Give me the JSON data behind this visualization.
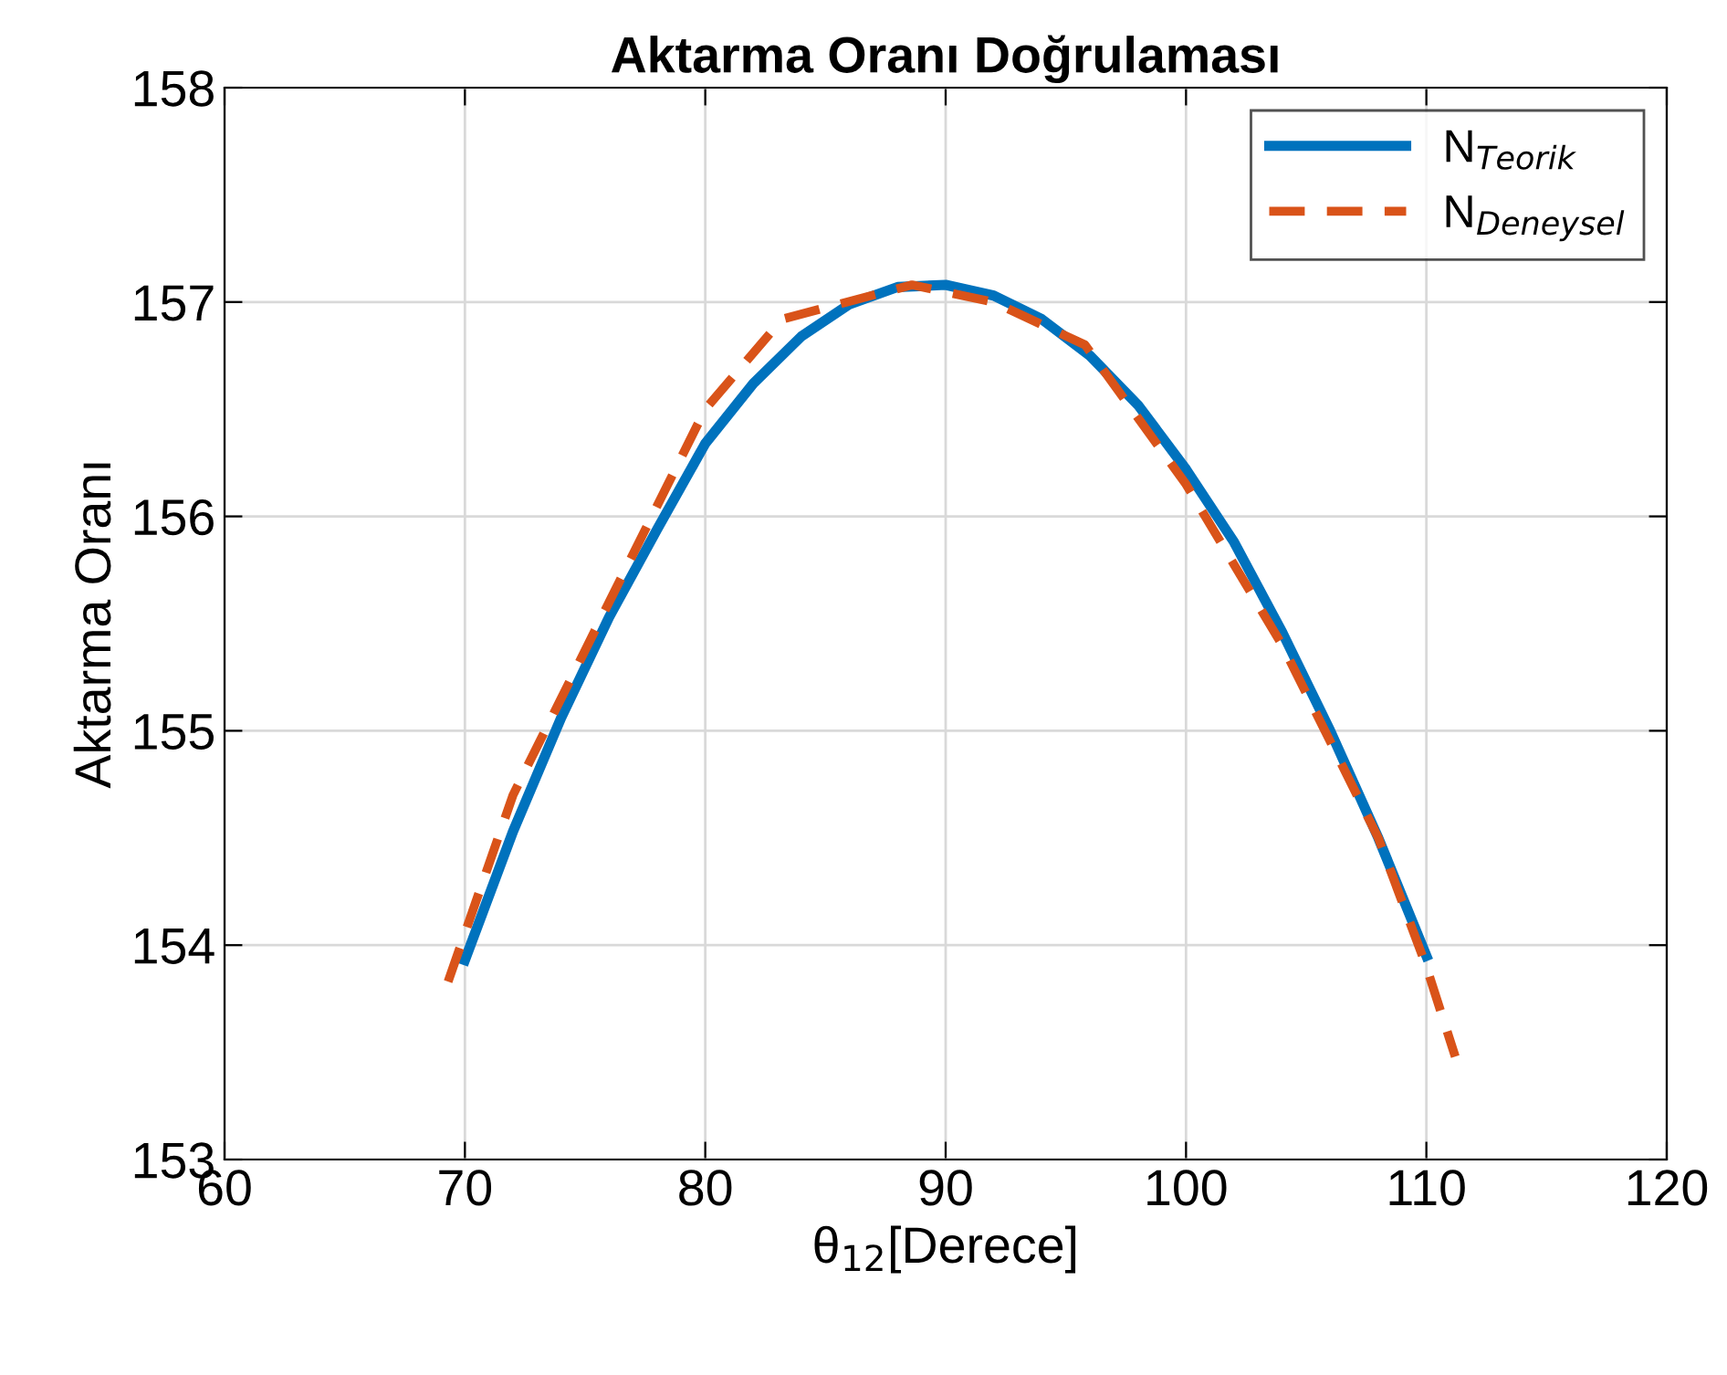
{
  "chart_data": {
    "type": "line",
    "title": "Aktarma Oranı Doğrulaması",
    "xlabel": "θ$_{12}$[Derece]",
    "ylabel": "Aktarma Oranı",
    "xlim": [
      60,
      120
    ],
    "xticks": [
      60,
      70,
      80,
      90,
      100,
      110,
      120
    ],
    "ylim": [
      153,
      158
    ],
    "yticks": [
      153,
      154,
      155,
      156,
      157,
      158
    ],
    "grid": true,
    "legend": "top right",
    "series": [
      {
        "name": "N$_{Teorik}$",
        "color": "#0072bd",
        "line_style": "solid",
        "x": [
          70,
          72,
          74,
          76,
          78,
          80,
          82,
          84,
          86,
          88,
          90,
          92,
          94,
          96,
          98,
          100,
          102,
          104,
          106,
          108,
          110
        ],
        "values": [
          153.93,
          154.53,
          155.06,
          155.53,
          155.94,
          156.34,
          156.62,
          156.84,
          156.99,
          157.07,
          157.08,
          157.03,
          156.92,
          156.75,
          156.52,
          156.22,
          155.88,
          155.46,
          155.0,
          154.5,
          153.95
        ]
      },
      {
        "name": "N$_{Deneysel}$",
        "color": "#d95319",
        "line_style": "dashed",
        "x": [
          69.3,
          72,
          76,
          80,
          83.2,
          88.6,
          92,
          95.8,
          100,
          104,
          108,
          110,
          111.2
        ],
        "values": [
          153.83,
          154.7,
          155.6,
          156.5,
          156.92,
          157.08,
          157.0,
          156.8,
          156.15,
          155.4,
          154.5,
          153.9,
          153.48
        ]
      }
    ]
  }
}
